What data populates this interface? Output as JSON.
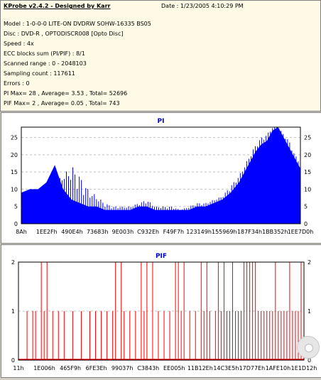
{
  "info": {
    "title": "KProbe v2.4.2 - Designed by Karr",
    "date": "Date : 1/23/2005 4:10:29 PM",
    "model": "Model : 1-0-0-0 LITE-ON DVDRW SOHW-16335 BS05",
    "disc": "Disc : DVD-R , OPTODISCR008 [Opto Disc]",
    "speed": "Speed : 4x",
    "ecc": "ECC blocks sum (PI/PIF) : 8/1",
    "scanned": "Scanned range : 0 - 2048103",
    "sampling": "Sampling count : 117611",
    "errors": "Errors : 0",
    "pi_stats": "PI Max= 28 , Average= 3.53 , Total= 52696",
    "pif_stats": "PIF Max= 2 , Average= 0.05 , Total= 743"
  },
  "colors": {
    "pi_fill": "#0000ff",
    "pif_line": "#ff0000",
    "title": "#0000cc",
    "grid": "#c0c0c0"
  },
  "chart_data": [
    {
      "type": "bar",
      "title": "PI",
      "ylim": [
        0,
        28
      ],
      "yticks": [
        0,
        5,
        10,
        15,
        20,
        25
      ],
      "grid": true,
      "xticklabels": [
        "8Ah",
        "1EE2Fh",
        "490E4h",
        "73683h",
        "9E003h",
        "C932Eh",
        "F49F7h",
        "123149h",
        "155969h",
        "187F34h",
        "1BB352h",
        "1EE7D0h"
      ],
      "x": [
        0,
        0.03,
        0.06,
        0.09,
        0.12,
        0.15,
        0.18,
        0.21,
        0.24,
        0.27,
        0.3,
        0.33,
        0.36,
        0.39,
        0.42,
        0.45,
        0.48,
        0.51,
        0.54,
        0.57,
        0.6,
        0.63,
        0.66,
        0.69,
        0.72,
        0.75,
        0.78,
        0.8,
        0.82,
        0.84,
        0.86,
        0.88,
        0.9,
        0.92,
        0.94,
        0.96,
        0.98,
        1.0
      ],
      "values": [
        9,
        10,
        10,
        12,
        17,
        10,
        7,
        6,
        5,
        5,
        4,
        4,
        4,
        4,
        5,
        5,
        4,
        4,
        4,
        4,
        4,
        5,
        5,
        6,
        7,
        9,
        12,
        15,
        18,
        21,
        23,
        24,
        27,
        28,
        25,
        22,
        19,
        16
      ],
      "peaks": [
        0,
        9,
        0,
        10,
        12,
        14,
        17,
        14,
        10,
        8,
        6,
        5,
        5,
        5,
        6,
        7,
        5,
        5,
        5,
        4,
        5,
        6,
        6,
        7,
        8,
        11,
        14,
        17,
        20,
        23,
        25,
        26,
        28,
        28,
        26,
        24,
        20,
        18
      ]
    },
    {
      "type": "line",
      "title": "PIF",
      "ylim": [
        0,
        2
      ],
      "yticks": [
        0,
        1,
        2
      ],
      "grid": true,
      "xticklabels": [
        "11h",
        "1E006h",
        "465F9h",
        "6FE3Eh",
        "99037h",
        "C3843h",
        "EE005h",
        "11B12Eh",
        "14C3E5h",
        "17D77Eh",
        "1AFE10h",
        "1E1D12h"
      ],
      "spikes_2": [
        0.08,
        0.1,
        0.34,
        0.36,
        0.43,
        0.45,
        0.47,
        0.55,
        0.56,
        0.58,
        0.64,
        0.66,
        0.7,
        0.72,
        0.75,
        0.79,
        0.8,
        0.81,
        0.82,
        0.83,
        0.9,
        0.95,
        0.99
      ],
      "spikes_1": [
        0.03,
        0.05,
        0.06,
        0.09,
        0.12,
        0.14,
        0.16,
        0.19,
        0.22,
        0.25,
        0.27,
        0.29,
        0.31,
        0.33,
        0.37,
        0.39,
        0.41,
        0.44,
        0.49,
        0.51,
        0.53,
        0.57,
        0.6,
        0.62,
        0.65,
        0.67,
        0.69,
        0.71,
        0.73,
        0.74,
        0.76,
        0.77,
        0.78,
        0.84,
        0.85,
        0.86,
        0.87,
        0.88,
        0.89,
        0.91,
        0.92,
        0.93,
        0.94,
        0.96,
        0.97,
        0.98
      ]
    }
  ]
}
